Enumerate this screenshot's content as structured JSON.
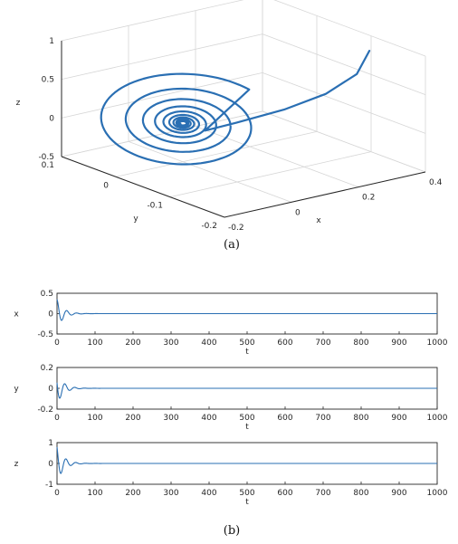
{
  "colors": {
    "line": "#2a6fb3",
    "grid": "#d6d6d6",
    "axis": "#262626"
  },
  "chart_data": [
    {
      "type": "line",
      "subtype": "3d",
      "caption": "(a)",
      "xlabel": "x",
      "ylabel": "y",
      "zlabel": "z",
      "xlim": [
        -0.2,
        0.4
      ],
      "ylim": [
        -0.2,
        0.1
      ],
      "zlim": [
        -0.5,
        1
      ],
      "x_ticks": [
        "-0.2",
        "0",
        "0.2",
        "0.4"
      ],
      "y_ticks": [
        "-0.2",
        "-0.1",
        "0",
        "0.1"
      ],
      "z_ticks": [
        "-0.5",
        "0",
        "0.5",
        "1"
      ],
      "grid": true,
      "series": [
        {
          "x": [
            0.42,
            0.26,
            0.15,
            0.06,
            0.0,
            -0.05,
            -0.08,
            -0.06,
            -0.01,
            0.03,
            0.04,
            0.02,
            -0.01,
            -0.02,
            -0.005,
            0.0
          ],
          "y": [
            -0.13,
            -0.15,
            -0.12,
            -0.08,
            -0.03,
            0.03,
            0.06,
            0.04,
            0.0,
            -0.03,
            -0.02,
            0.01,
            0.02,
            0.01,
            0.0,
            0.0
          ],
          "z": [
            0.95,
            0.72,
            0.4,
            0.05,
            -0.2,
            -0.15,
            0.08,
            0.18,
            0.12,
            -0.02,
            -0.08,
            -0.04,
            0.03,
            0.04,
            0.01,
            0.0
          ]
        }
      ]
    },
    {
      "type": "line",
      "caption": "(b)",
      "xlabel": "t",
      "x_ticks": [
        "0",
        "100",
        "200",
        "300",
        "400",
        "500",
        "600",
        "700",
        "800",
        "900",
        "1000"
      ],
      "panels": [
        {
          "ylabel": "x",
          "ylim": [
            -0.5,
            0.5
          ],
          "y_ticks": [
            "0.5",
            "0",
            "-0.5"
          ],
          "amplitude": 0.35,
          "phase": 0.0
        },
        {
          "ylabel": "y",
          "ylim": [
            -0.2,
            0.2
          ],
          "y_ticks": [
            "0.2",
            "0",
            "-0.2"
          ],
          "amplitude": 0.15,
          "phase": 1.2
        },
        {
          "ylabel": "z",
          "ylim": [
            -1,
            1
          ],
          "y_ticks": [
            "1",
            "0",
            "-1"
          ],
          "amplitude": 0.9,
          "phase": 0.5
        }
      ],
      "decay_rate": 0.06,
      "period": 26
    }
  ]
}
